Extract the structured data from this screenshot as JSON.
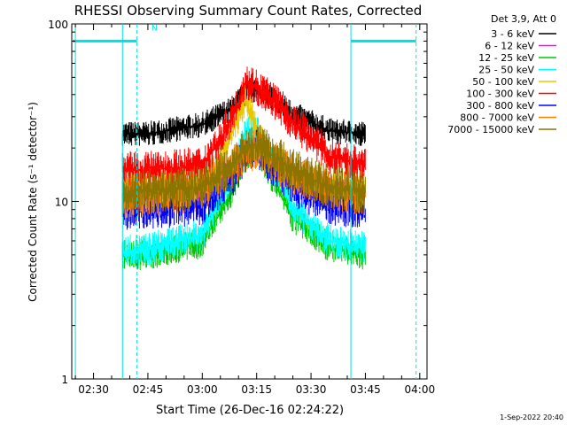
{
  "chart_data": {
    "type": "line",
    "title": "RHESSI Observing Summary Count Rates, Corrected",
    "xlabel": "Start Time (26-Dec-16 02:24:22)",
    "ylabel": "Corrected Count Rate (s⁻¹ detector⁻¹)",
    "ylog": true,
    "xlim": [
      "02:24",
      "04:02"
    ],
    "ylim": [
      1,
      100
    ],
    "x_ticks": [
      "02:30",
      "02:45",
      "03:00",
      "03:15",
      "03:30",
      "03:45",
      "04:00"
    ],
    "y_ticks": [
      "1",
      "10",
      "100"
    ],
    "legend_header": "Det 3,9, Att 0",
    "legend_position": "top-right, outside plot",
    "footer_timestamp": "1-Sep-2022 20:40",
    "annotations": [
      {
        "text": "N",
        "x": "02:46",
        "y": 92,
        "color": "#00e0e0"
      }
    ],
    "shading_bars": [
      {
        "start": "02:24",
        "end": "02:42",
        "y": 80,
        "color": "#00e0e0"
      },
      {
        "start": "03:41",
        "end": "03:59",
        "y": 80,
        "color": "#00e0e0"
      }
    ],
    "vertical_lines": [
      {
        "x": "02:25",
        "style": "solid",
        "color": "#00e0e0"
      },
      {
        "x": "02:38",
        "style": "solid",
        "color": "#00e0e0"
      },
      {
        "x": "02:42",
        "style": "dashed",
        "color": "#00e0e0"
      },
      {
        "x": "03:41",
        "style": "solid",
        "color": "#00e0e0"
      },
      {
        "x": "03:59",
        "style": "dashed",
        "color": "#00e0e0"
      }
    ],
    "series": [
      {
        "name": "3 - 6 keV",
        "color": "#000000",
        "x": [
          "02:38",
          "02:45",
          "03:00",
          "03:08",
          "03:12",
          "03:15",
          "03:18",
          "03:25",
          "03:35",
          "03:45"
        ],
        "y": [
          24,
          24,
          27,
          33,
          41,
          43,
          40,
          31,
          25,
          24
        ]
      },
      {
        "name": "6 - 12 keV",
        "color": "#ff00ff",
        "x": [
          "02:38",
          "02:45",
          "03:00",
          "03:08",
          "03:12",
          "03:15",
          "03:18",
          "03:25",
          "03:35",
          "03:45"
        ],
        "y": [
          11,
          11,
          11.5,
          15,
          19,
          19.5,
          18,
          14,
          11.5,
          11
        ]
      },
      {
        "name": "12 - 25 keV",
        "color": "#00c800",
        "x": [
          "02:38",
          "02:45",
          "03:00",
          "03:08",
          "03:12",
          "03:15",
          "03:18",
          "03:25",
          "03:35",
          "03:45"
        ],
        "y": [
          5,
          5,
          5.8,
          11,
          18,
          20,
          15,
          8,
          5.5,
          5
        ]
      },
      {
        "name": "25 - 50 keV",
        "color": "#00ffff",
        "x": [
          "02:38",
          "02:45",
          "03:00",
          "03:08",
          "03:12",
          "03:15",
          "03:18",
          "03:25",
          "03:35",
          "03:45"
        ],
        "y": [
          5.2,
          5.4,
          6.5,
          13,
          24,
          25,
          18,
          9,
          6,
          5.5
        ]
      },
      {
        "name": "50 - 100 keV",
        "color": "#e6c800",
        "x": [
          "02:38",
          "02:45",
          "03:00",
          "03:05",
          "03:10",
          "03:12",
          "03:15",
          "03:18",
          "03:25",
          "03:35",
          "03:45"
        ],
        "y": [
          12,
          12,
          12.5,
          16,
          30,
          38,
          24,
          18,
          14,
          12,
          12
        ]
      },
      {
        "name": "100 - 300 keV",
        "color": "#ff0000",
        "x": [
          "02:38",
          "02:45",
          "03:00",
          "03:05",
          "03:10",
          "03:12",
          "03:15",
          "03:18",
          "03:25",
          "03:35",
          "03:45"
        ],
        "y": [
          15,
          15,
          16,
          22,
          35,
          48,
          44,
          40,
          28,
          18,
          16
        ]
      },
      {
        "name": "300 - 800 keV",
        "color": "#0000ff",
        "x": [
          "02:38",
          "02:45",
          "03:00",
          "03:08",
          "03:12",
          "03:15",
          "03:18",
          "03:25",
          "03:35",
          "03:45"
        ],
        "y": [
          9,
          9,
          9.5,
          13,
          18,
          20,
          17,
          12,
          9.5,
          9
        ]
      },
      {
        "name": "800 - 7000 keV",
        "color": "#ff8000",
        "x": [
          "02:38",
          "02:45",
          "03:00",
          "03:08",
          "03:12",
          "03:15",
          "03:18",
          "03:25",
          "03:35",
          "03:45"
        ],
        "y": [
          10.5,
          10.8,
          11.5,
          15,
          19,
          19.5,
          18,
          14,
          11.5,
          11
        ]
      },
      {
        "name": "7000 - 15000 keV",
        "color": "#8b7500",
        "x": [
          "02:38",
          "02:45",
          "03:00",
          "03:08",
          "03:12",
          "03:15",
          "03:18",
          "03:25",
          "03:35",
          "03:45"
        ],
        "y": [
          11,
          11.5,
          12,
          16,
          20,
          21,
          19,
          15,
          12,
          11.5
        ]
      }
    ]
  }
}
